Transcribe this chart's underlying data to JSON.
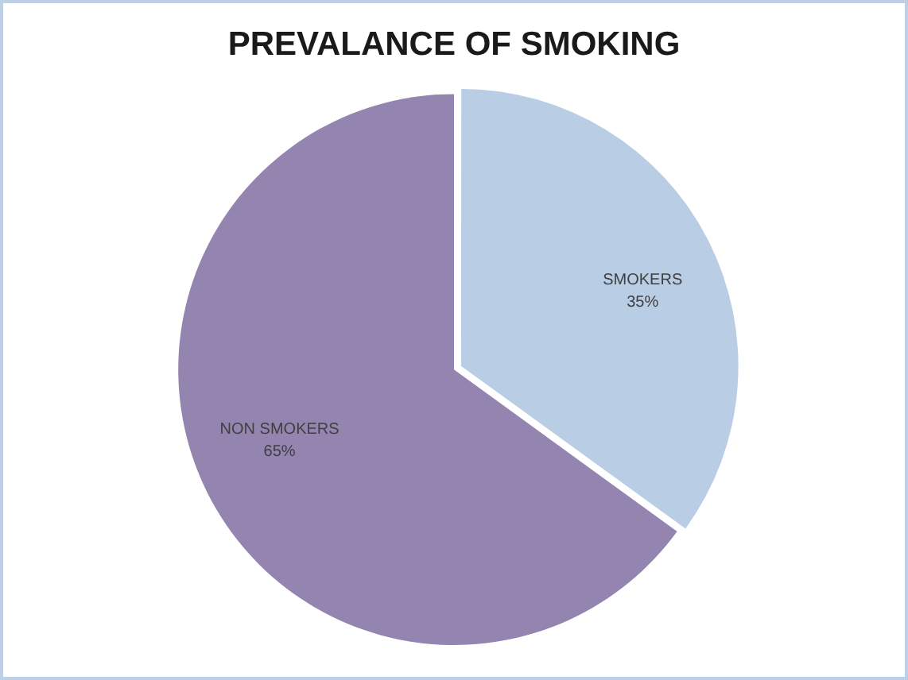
{
  "chart_data": {
    "type": "pie",
    "title": "PREVALANCE OF SMOKING",
    "categories": [
      "SMOKERS",
      "NON SMOKERS"
    ],
    "values": [
      35,
      65
    ],
    "colors": [
      "#b9cde5",
      "#9484b0"
    ],
    "value_labels": [
      "35%",
      "65%"
    ],
    "legend": false
  }
}
